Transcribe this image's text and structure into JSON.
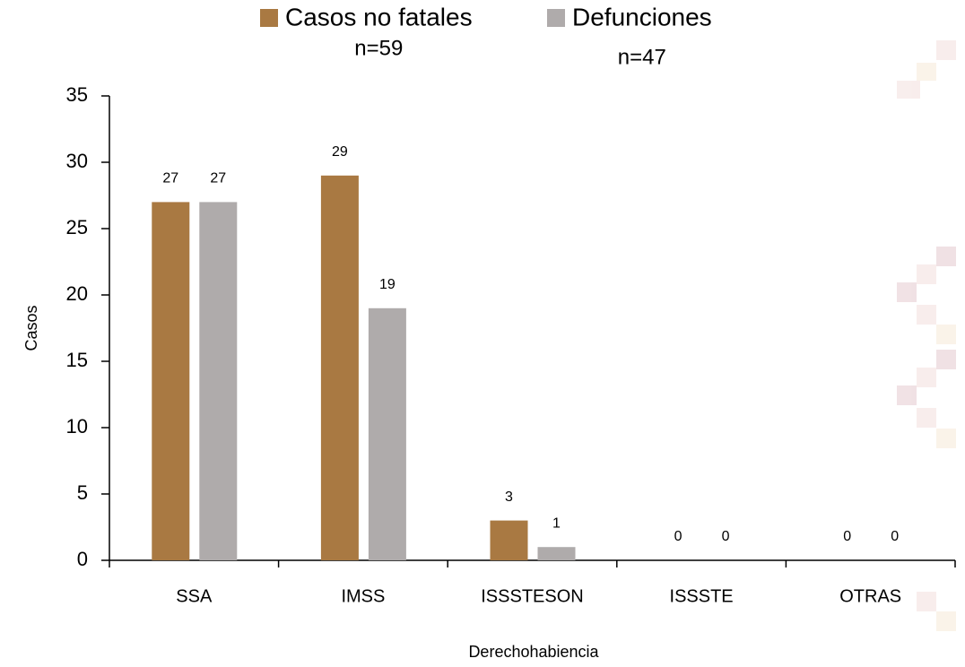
{
  "chart_data": {
    "type": "bar",
    "x_label": "Derechohabiencia",
    "y_label": "Casos",
    "categories": [
      "SSA",
      "IMSS",
      "ISSSTESON",
      "ISSSTE",
      "OTRAS"
    ],
    "series": [
      {
        "name": "Casos no fatales",
        "color": "#a97942",
        "values": [
          27,
          29,
          3,
          0,
          0
        ]
      },
      {
        "name": "Defunciones",
        "color": "#afabab",
        "values": [
          27,
          19,
          1,
          0,
          0
        ]
      }
    ],
    "annotations": [
      "n=59",
      "n=47"
    ],
    "ylim": [
      0,
      35
    ],
    "yticks": [
      0,
      5,
      10,
      15,
      20,
      25,
      30,
      35
    ],
    "grid": false,
    "legend": "top"
  }
}
